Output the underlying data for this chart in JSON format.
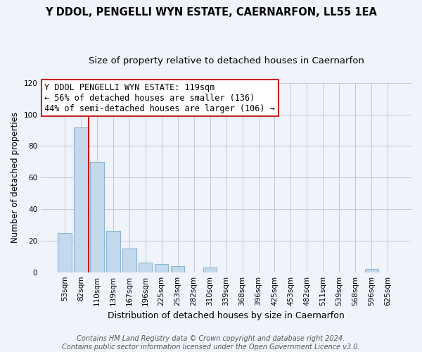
{
  "title": "Y DDOL, PENGELLI WYN ESTATE, CAERNARFON, LL55 1EA",
  "subtitle": "Size of property relative to detached houses in Caernarfon",
  "xlabel": "Distribution of detached houses by size in Caernarfon",
  "ylabel": "Number of detached properties",
  "categories": [
    "53sqm",
    "82sqm",
    "110sqm",
    "139sqm",
    "167sqm",
    "196sqm",
    "225sqm",
    "253sqm",
    "282sqm",
    "310sqm",
    "339sqm",
    "368sqm",
    "396sqm",
    "425sqm",
    "453sqm",
    "482sqm",
    "511sqm",
    "539sqm",
    "568sqm",
    "596sqm",
    "625sqm"
  ],
  "values": [
    25,
    92,
    70,
    26,
    15,
    6,
    5,
    4,
    0,
    3,
    0,
    0,
    0,
    0,
    0,
    0,
    0,
    0,
    0,
    2,
    0
  ],
  "bar_color": "#c5d9ed",
  "bar_edge_color": "#8ab4d4",
  "vline_color": "#cc0000",
  "vline_x": 1.5,
  "annotation_text_line1": "Y DDOL PENGELLI WYN ESTATE: 119sqm",
  "annotation_text_line2": "← 56% of detached houses are smaller (136)",
  "annotation_text_line3": "44% of semi-detached houses are larger (106) →",
  "ylim": [
    0,
    120
  ],
  "yticks": [
    0,
    20,
    40,
    60,
    80,
    100,
    120
  ],
  "footnote_line1": "Contains HM Land Registry data © Crown copyright and database right 2024.",
  "footnote_line2": "Contains public sector information licensed under the Open Government Licence v3.0.",
  "background_color": "#f0f4fa",
  "grid_color": "#c0c8d8",
  "title_fontsize": 10.5,
  "subtitle_fontsize": 9.5,
  "xlabel_fontsize": 9,
  "ylabel_fontsize": 8.5,
  "tick_fontsize": 7.5,
  "annotation_fontsize": 8.5,
  "footnote_fontsize": 7
}
